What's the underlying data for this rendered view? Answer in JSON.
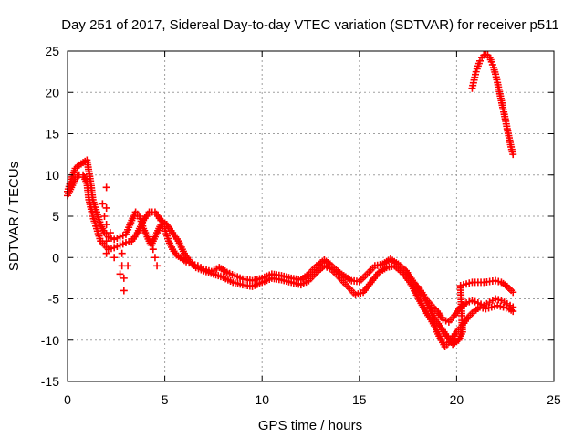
{
  "chart_data": {
    "type": "scatter",
    "title": "Day 251 of 2017, Sidereal Day-to-day VTEC variation (SDTVAR) for receiver p511",
    "xlabel": "GPS time / hours",
    "ylabel": "SDTVAR / TECUs",
    "xlim": [
      0,
      25
    ],
    "ylim": [
      -15,
      25
    ],
    "xticks": [
      "0",
      "5",
      "10",
      "15",
      "20",
      "25"
    ],
    "yticks": [
      "-15",
      "-10",
      "-5",
      "0",
      "5",
      "10",
      "15",
      "20",
      "25"
    ],
    "grid": true,
    "marker": "plus",
    "series": [
      {
        "name": "upper-track",
        "color": "#ff0000",
        "points": [
          [
            0.0,
            8.0
          ],
          [
            0.2,
            9.5
          ],
          [
            0.4,
            10.8
          ],
          [
            0.6,
            11.2
          ],
          [
            0.8,
            11.5
          ],
          [
            1.0,
            11.8
          ],
          [
            1.2,
            9.0
          ],
          [
            1.3,
            7.0
          ],
          [
            1.5,
            5.5
          ],
          [
            1.7,
            4.0
          ],
          [
            1.9,
            3.0
          ],
          [
            2.1,
            2.5
          ],
          [
            2.4,
            2.2
          ],
          [
            2.7,
            2.5
          ],
          [
            3.0,
            2.8
          ],
          [
            3.3,
            4.5
          ],
          [
            3.5,
            5.5
          ],
          [
            3.7,
            5.0
          ],
          [
            3.9,
            3.5
          ],
          [
            4.1,
            2.5
          ],
          [
            4.3,
            1.5
          ],
          [
            4.6,
            3.0
          ],
          [
            4.8,
            4.0
          ],
          [
            5.0,
            3.5
          ],
          [
            5.2,
            2.0
          ],
          [
            5.4,
            1.0
          ],
          [
            5.6,
            0.3
          ],
          [
            5.8,
            0.0
          ],
          [
            6.1,
            -0.5
          ],
          [
            6.4,
            -0.8
          ],
          [
            6.7,
            -1.0
          ],
          [
            7.0,
            -1.4
          ],
          [
            7.4,
            -1.7
          ],
          [
            7.8,
            -1.2
          ],
          [
            8.2,
            -1.8
          ],
          [
            8.6,
            -2.2
          ],
          [
            9.0,
            -2.6
          ],
          [
            9.5,
            -2.8
          ],
          [
            10.0,
            -2.5
          ],
          [
            10.5,
            -2.0
          ],
          [
            11.0,
            -2.2
          ],
          [
            11.5,
            -2.5
          ],
          [
            12.0,
            -2.7
          ],
          [
            12.4,
            -2.0
          ],
          [
            12.8,
            -1.0
          ],
          [
            13.2,
            -0.3
          ],
          [
            13.5,
            -0.8
          ],
          [
            13.8,
            -1.5
          ],
          [
            14.2,
            -2.2
          ],
          [
            14.6,
            -2.8
          ],
          [
            15.0,
            -2.9
          ],
          [
            15.4,
            -2.0
          ],
          [
            15.8,
            -1.0
          ],
          [
            16.2,
            -0.8
          ],
          [
            16.6,
            -0.2
          ],
          [
            17.0,
            -0.8
          ],
          [
            17.4,
            -1.6
          ],
          [
            17.8,
            -3.0
          ],
          [
            18.2,
            -4.5
          ],
          [
            18.6,
            -5.5
          ],
          [
            19.0,
            -6.5
          ],
          [
            19.3,
            -7.5
          ],
          [
            19.6,
            -7.8
          ],
          [
            19.9,
            -7.0
          ],
          [
            20.2,
            -6.0
          ],
          [
            20.5,
            -5.5
          ],
          [
            20.8,
            -5.2
          ],
          [
            21.1,
            -5.5
          ],
          [
            21.4,
            -5.8
          ],
          [
            21.7,
            -5.4
          ],
          [
            22.0,
            -5.0
          ],
          [
            22.3,
            -5.2
          ],
          [
            22.6,
            -5.6
          ],
          [
            22.9,
            -6.0
          ]
        ]
      },
      {
        "name": "lower-track",
        "color": "#ff0000",
        "points": [
          [
            0.0,
            7.5
          ],
          [
            0.2,
            8.5
          ],
          [
            0.4,
            9.5
          ],
          [
            0.6,
            10.0
          ],
          [
            0.8,
            10.0
          ],
          [
            1.0,
            9.0
          ],
          [
            1.1,
            7.0
          ],
          [
            1.3,
            5.0
          ],
          [
            1.5,
            3.5
          ],
          [
            1.7,
            2.0
          ],
          [
            1.9,
            1.5
          ],
          [
            2.1,
            1.0
          ],
          [
            2.4,
            1.2
          ],
          [
            2.7,
            1.5
          ],
          [
            3.0,
            1.8
          ],
          [
            3.3,
            2.0
          ],
          [
            3.6,
            3.0
          ],
          [
            3.9,
            4.5
          ],
          [
            4.2,
            5.5
          ],
          [
            4.5,
            5.5
          ],
          [
            4.8,
            4.5
          ],
          [
            5.1,
            4.0
          ],
          [
            5.4,
            3.0
          ],
          [
            5.7,
            2.0
          ],
          [
            6.0,
            0.5
          ],
          [
            6.3,
            -0.5
          ],
          [
            6.6,
            -1.2
          ],
          [
            7.0,
            -1.6
          ],
          [
            7.5,
            -2.0
          ],
          [
            8.0,
            -2.4
          ],
          [
            8.5,
            -3.0
          ],
          [
            9.0,
            -3.3
          ],
          [
            9.5,
            -3.5
          ],
          [
            10.0,
            -3.0
          ],
          [
            10.5,
            -2.5
          ],
          [
            11.0,
            -2.7
          ],
          [
            11.5,
            -3.0
          ],
          [
            12.0,
            -3.3
          ],
          [
            12.4,
            -2.8
          ],
          [
            12.8,
            -1.8
          ],
          [
            13.2,
            -1.0
          ],
          [
            13.6,
            -1.5
          ],
          [
            14.0,
            -2.5
          ],
          [
            14.4,
            -3.5
          ],
          [
            14.8,
            -4.5
          ],
          [
            15.2,
            -4.2
          ],
          [
            15.6,
            -3.0
          ],
          [
            16.0,
            -1.8
          ],
          [
            16.4,
            -1.2
          ],
          [
            16.8,
            -1.0
          ],
          [
            17.2,
            -1.8
          ],
          [
            17.6,
            -3.0
          ],
          [
            18.0,
            -4.8
          ],
          [
            18.4,
            -6.5
          ],
          [
            18.8,
            -8.0
          ],
          [
            19.1,
            -9.5
          ],
          [
            19.4,
            -10.8
          ],
          [
            19.7,
            -10.0
          ],
          [
            20.0,
            -9.0
          ],
          [
            20.3,
            -8.2
          ],
          [
            20.6,
            -7.2
          ],
          [
            20.9,
            -6.5
          ],
          [
            21.2,
            -6.0
          ],
          [
            21.5,
            -6.2
          ],
          [
            21.8,
            -6.0
          ],
          [
            22.1,
            -5.8
          ],
          [
            22.4,
            -6.0
          ],
          [
            22.7,
            -6.2
          ],
          [
            22.9,
            -6.5
          ]
        ]
      },
      {
        "name": "late-track",
        "color": "#ff0000",
        "points": [
          [
            18.0,
            -3.5
          ],
          [
            18.3,
            -4.5
          ],
          [
            18.6,
            -6.0
          ],
          [
            18.9,
            -7.5
          ],
          [
            19.2,
            -8.5
          ],
          [
            19.5,
            -9.5
          ],
          [
            19.8,
            -10.5
          ],
          [
            20.1,
            -10.0
          ],
          [
            20.3,
            -9.0
          ],
          [
            20.2,
            -3.4
          ],
          [
            20.5,
            -3.2
          ],
          [
            20.8,
            -3.0
          ],
          [
            21.1,
            -3.0
          ],
          [
            21.4,
            -3.0
          ],
          [
            21.7,
            -2.9
          ],
          [
            22.0,
            -2.8
          ],
          [
            22.3,
            -3.0
          ],
          [
            22.6,
            -3.5
          ],
          [
            22.9,
            -4.2
          ]
        ]
      },
      {
        "name": "spikes",
        "color": "#ff0000",
        "points": [
          [
            2.0,
            8.5
          ],
          [
            2.0,
            6.0
          ],
          [
            2.0,
            4.0
          ],
          [
            2.0,
            2.0
          ],
          [
            2.0,
            0.5
          ],
          [
            2.2,
            3.0
          ],
          [
            2.4,
            0.0
          ],
          [
            2.8,
            0.5
          ],
          [
            2.8,
            -1.0
          ],
          [
            2.9,
            -2.5
          ],
          [
            2.9,
            -4.0
          ],
          [
            2.7,
            -2.0
          ],
          [
            3.1,
            -1.0
          ],
          [
            4.5,
            0.0
          ],
          [
            4.6,
            -1.0
          ],
          [
            4.4,
            1.0
          ],
          [
            1.8,
            6.5
          ],
          [
            1.9,
            5.0
          ]
        ]
      },
      {
        "name": "arc",
        "color": "#ff0000",
        "points": [
          [
            20.8,
            20.5
          ],
          [
            20.9,
            21.5
          ],
          [
            21.0,
            22.5
          ],
          [
            21.1,
            23.2
          ],
          [
            21.2,
            23.8
          ],
          [
            21.3,
            24.2
          ],
          [
            21.4,
            24.5
          ],
          [
            21.5,
            24.6
          ],
          [
            21.6,
            24.5
          ],
          [
            21.7,
            24.2
          ],
          [
            21.8,
            23.7
          ],
          [
            21.9,
            23.0
          ],
          [
            22.0,
            22.2
          ],
          [
            22.1,
            21.2
          ],
          [
            22.2,
            20.1
          ],
          [
            22.3,
            19.0
          ],
          [
            22.4,
            17.9
          ],
          [
            22.5,
            16.8
          ],
          [
            22.6,
            15.6
          ],
          [
            22.7,
            14.5
          ],
          [
            22.8,
            13.4
          ],
          [
            22.9,
            12.5
          ]
        ]
      }
    ]
  }
}
